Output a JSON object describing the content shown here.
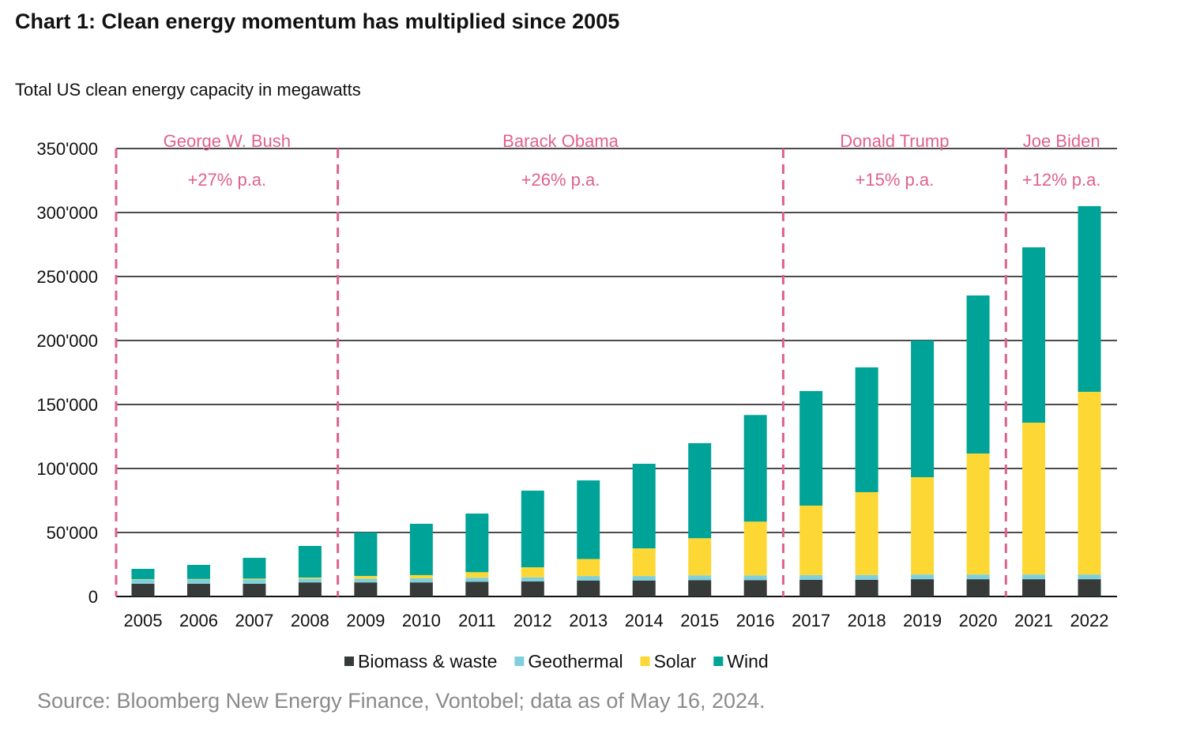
{
  "chart_data": {
    "type": "bar",
    "stacked": true,
    "title": "Chart 1: Clean energy momentum has multiplied since 2005",
    "subtitle": "Total US clean energy capacity in megawatts",
    "xlabel": "",
    "ylabel": "",
    "ylim": [
      0,
      350000
    ],
    "yticks": [
      "0",
      "50'000",
      "100'000",
      "150'000",
      "200'000",
      "250'000",
      "300'000",
      "350'000"
    ],
    "grid": true,
    "legend_position": "bottom",
    "categories": [
      "2005",
      "2006",
      "2007",
      "2008",
      "2009",
      "2010",
      "2011",
      "2012",
      "2013",
      "2014",
      "2015",
      "2016",
      "2017",
      "2018",
      "2019",
      "2020",
      "2021",
      "2022"
    ],
    "series": [
      {
        "name": "Biomass & waste",
        "color": "#363a38",
        "values": [
          10000,
          10000,
          10000,
          11000,
          11000,
          11000,
          11500,
          11800,
          12500,
          12500,
          12800,
          12800,
          13000,
          13000,
          13500,
          13500,
          13500,
          13500
        ]
      },
      {
        "name": "Geothermal",
        "color": "#7fd0dc",
        "values": [
          3300,
          3300,
          3300,
          3000,
          3000,
          3200,
          3200,
          3200,
          3500,
          3500,
          3700,
          3700,
          3700,
          3800,
          3700,
          3700,
          3700,
          3700
        ]
      },
      {
        "name": "Solar",
        "color": "#fdd835",
        "values": [
          300,
          400,
          700,
          800,
          2000,
          2500,
          4300,
          7800,
          13300,
          21600,
          29000,
          42000,
          54300,
          64700,
          76000,
          94500,
          118600,
          142700
        ]
      },
      {
        "name": "Wind",
        "color": "#00a398",
        "values": [
          8000,
          11000,
          16200,
          24700,
          34000,
          40100,
          45800,
          59900,
          61400,
          66100,
          74300,
          83300,
          89500,
          97500,
          106800,
          123500,
          137000,
          145100
        ]
      }
    ],
    "annotations": [
      {
        "president": "George W. Bush",
        "growth": "+27% p.a.",
        "from": "2005",
        "to": "2008"
      },
      {
        "president": "Barack Obama",
        "growth": "+26% p.a.",
        "from": "2009",
        "to": "2016"
      },
      {
        "president": "Donald Trump",
        "growth": "+15% p.a.",
        "from": "2017",
        "to": "2020"
      },
      {
        "president": "Joe Biden",
        "growth": "+12% p.a.",
        "from": "2021",
        "to": "2022"
      }
    ],
    "annotation_color": "#e0608c",
    "source": "Source: Bloomberg New Energy Finance, Vontobel; data as of May 16, 2024."
  }
}
